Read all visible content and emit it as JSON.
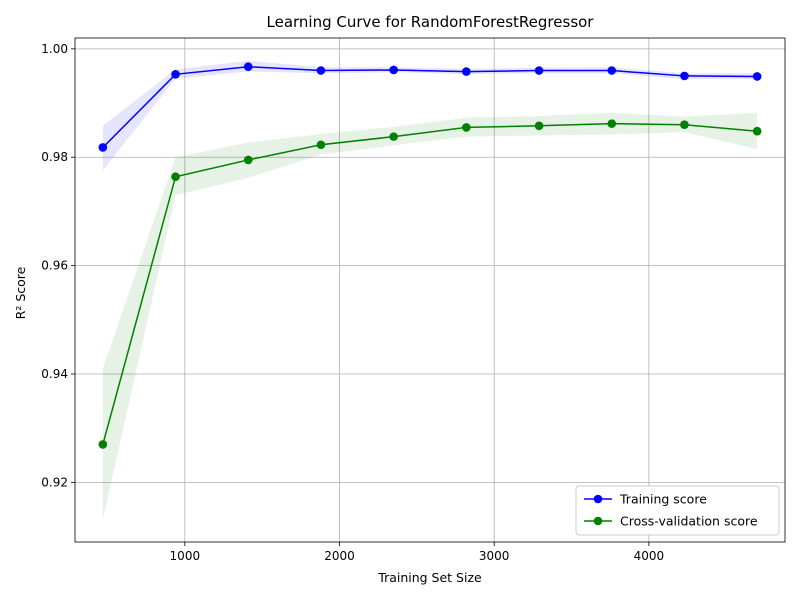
{
  "chart_data": {
    "type": "line",
    "title": "Learning Curve for RandomForestRegressor",
    "xlabel": "Training Set Size",
    "ylabel": "R² Score",
    "xlim": [
      290,
      4880
    ],
    "ylim": [
      0.909,
      1.002
    ],
    "xticks": [
      1000,
      2000,
      3000,
      4000
    ],
    "yticks": [
      0.92,
      0.94,
      0.96,
      0.98,
      1.0
    ],
    "ytick_labels": [
      "0.92",
      "0.94",
      "0.96",
      "0.98",
      "1.00"
    ],
    "grid": true,
    "legend_position": "lower-right",
    "x": [
      470,
      940,
      1410,
      1880,
      2350,
      2820,
      3290,
      3760,
      4230,
      4700
    ],
    "series": [
      {
        "name": "Training score",
        "color": "#0000ff",
        "fill_color": "#0000ff",
        "values": [
          0.9818,
          0.9953,
          0.9967,
          0.996,
          0.9961,
          0.9958,
          0.996,
          0.996,
          0.995,
          0.9949
        ],
        "lower": [
          0.9776,
          0.9945,
          0.9958,
          0.9955,
          0.9957,
          0.9953,
          0.9955,
          0.9955,
          0.9944,
          0.9944
        ],
        "upper": [
          0.9858,
          0.9962,
          0.9978,
          0.9966,
          0.9966,
          0.9963,
          0.9965,
          0.9966,
          0.9955,
          0.9955
        ]
      },
      {
        "name": "Cross-validation score",
        "color": "#008000",
        "fill_color": "#008000",
        "values": [
          0.927,
          0.9764,
          0.9795,
          0.9823,
          0.9838,
          0.9855,
          0.9858,
          0.9862,
          0.986,
          0.9848
        ],
        "lower": [
          0.9132,
          0.973,
          0.9762,
          0.9805,
          0.9822,
          0.9838,
          0.984,
          0.9842,
          0.9846,
          0.9815
        ],
        "upper": [
          0.941,
          0.98,
          0.9827,
          0.9843,
          0.9856,
          0.9873,
          0.9876,
          0.9882,
          0.9875,
          0.9882
        ]
      }
    ]
  }
}
